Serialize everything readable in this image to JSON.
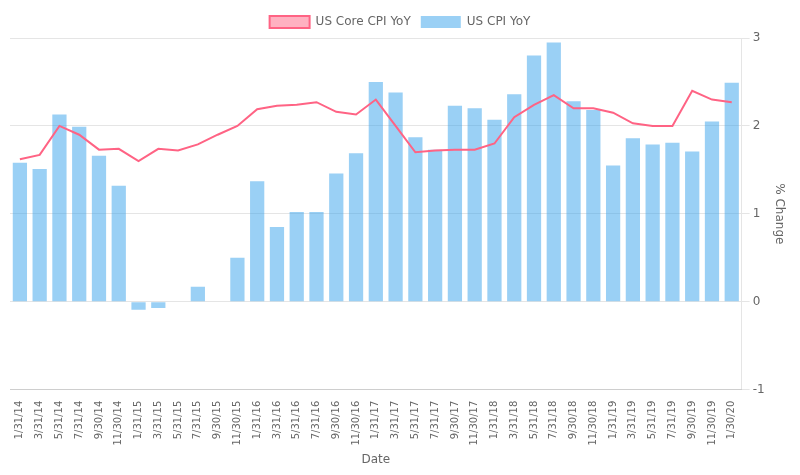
{
  "chart_data": {
    "type": "bar",
    "xlabel": "Date",
    "ylabel": "% Change",
    "categories": [
      "1/31/14",
      "3/31/14",
      "5/31/14",
      "7/31/14",
      "9/30/14",
      "11/30/14",
      "1/31/15",
      "3/31/15",
      "5/31/15",
      "7/31/15",
      "9/30/15",
      "11/30/15",
      "1/31/16",
      "3/31/16",
      "5/31/16",
      "7/31/16",
      "9/30/16",
      "11/30/16",
      "1/31/17",
      "3/31/17",
      "5/31/17",
      "7/31/17",
      "9/30/17",
      "11/30/17",
      "1/31/18",
      "3/31/18",
      "5/31/18",
      "7/31/18",
      "9/30/18",
      "11/30/18",
      "1/31/19",
      "3/31/19",
      "5/31/19",
      "7/31/19",
      "9/30/19",
      "11/30/19",
      "1/30/20"
    ],
    "series": [
      {
        "name": "US CPI YoY",
        "type": "bar",
        "values": [
          1.58,
          1.51,
          2.13,
          1.99,
          1.66,
          1.32,
          -0.09,
          -0.07,
          0.0,
          0.17,
          0.0,
          0.5,
          1.37,
          0.85,
          1.02,
          1.02,
          1.46,
          1.69,
          2.5,
          2.38,
          1.87,
          1.73,
          2.23,
          2.2,
          2.07,
          2.36,
          2.8,
          2.95,
          2.28,
          2.18,
          1.55,
          1.86,
          1.79,
          1.81,
          1.71,
          2.05,
          2.49
        ]
      },
      {
        "name": "US Core CPI YoY",
        "type": "line",
        "values": [
          1.62,
          1.67,
          2.0,
          1.9,
          1.73,
          1.74,
          1.6,
          1.74,
          1.72,
          1.79,
          1.9,
          2.0,
          2.19,
          2.23,
          2.24,
          2.27,
          2.16,
          2.13,
          2.3,
          2.0,
          1.7,
          1.72,
          1.73,
          1.73,
          1.8,
          2.1,
          2.24,
          2.35,
          2.2,
          2.2,
          2.15,
          2.03,
          2.0,
          2.0,
          2.4,
          2.3,
          2.27
        ]
      }
    ],
    "ylim": [
      -1,
      3
    ],
    "yticks": [
      -1,
      0,
      1,
      2,
      3
    ],
    "grid": true,
    "legend": "top"
  }
}
